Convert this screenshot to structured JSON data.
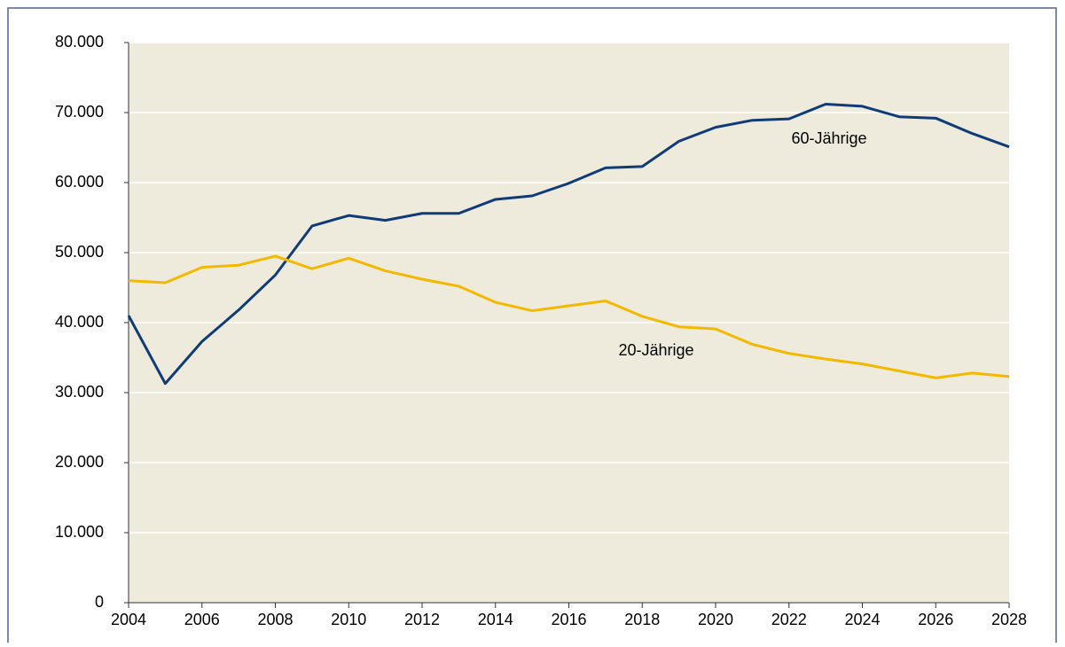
{
  "chart_data": {
    "type": "line",
    "x": [
      2004,
      2005,
      2006,
      2007,
      2008,
      2009,
      2010,
      2011,
      2012,
      2013,
      2014,
      2015,
      2016,
      2017,
      2018,
      2019,
      2020,
      2021,
      2022,
      2023,
      2024,
      2025,
      2026,
      2027,
      2028
    ],
    "series": [
      {
        "name": "60-Jährige",
        "color": "#0f3c78",
        "values": [
          41000,
          31300,
          37300,
          41800,
          46800,
          53800,
          55300,
          54600,
          55600,
          55600,
          57600,
          58100,
          59900,
          62100,
          62300,
          65900,
          67900,
          68900,
          69100,
          71200,
          70900,
          69400,
          69200,
          67000,
          65100
        ]
      },
      {
        "name": "20-Jährige",
        "color": "#f5b800",
        "values": [
          46000,
          45700,
          47900,
          48200,
          49500,
          47700,
          49200,
          47400,
          46200,
          45200,
          42900,
          41700,
          42400,
          43100,
          40900,
          39400,
          39100,
          36900,
          35600,
          34800,
          34100,
          33100,
          32100,
          32800,
          32300
        ]
      }
    ],
    "xlim": [
      2004,
      2028
    ],
    "xticks": [
      2004,
      2006,
      2008,
      2010,
      2012,
      2014,
      2016,
      2018,
      2020,
      2022,
      2024,
      2026,
      2028
    ],
    "ylim": [
      0,
      80000
    ],
    "yticks": [
      0,
      {
        "value": 10000,
        "label": "10.000"
      },
      {
        "value": 20000,
        "label": "20.000"
      },
      {
        "value": 30000,
        "label": "30.000"
      },
      {
        "value": 40000,
        "label": "40.000"
      },
      {
        "value": 50000,
        "label": "50.000"
      },
      {
        "value": 60000,
        "label": "60.000"
      },
      {
        "value": 70000,
        "label": "70.000"
      },
      {
        "value": 80000,
        "label": "80.000"
      }
    ],
    "grid": true
  }
}
